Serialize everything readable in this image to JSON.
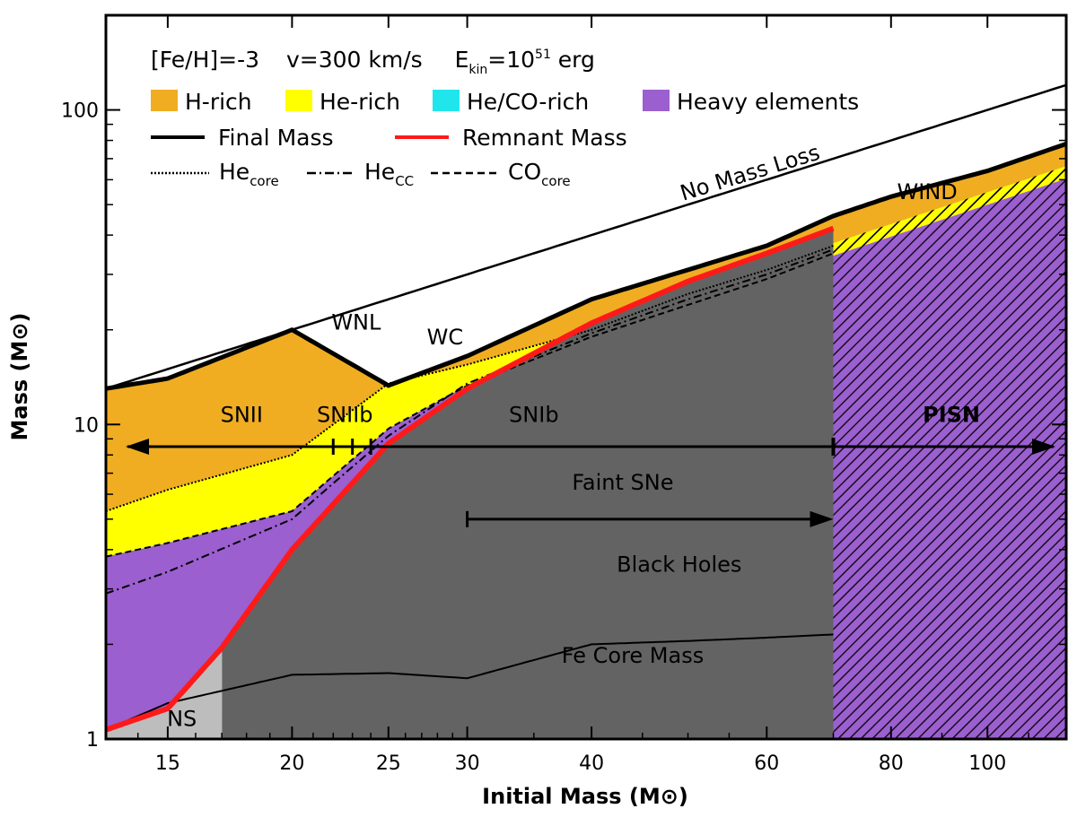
{
  "chart_data": {
    "type": "area",
    "subtype": "stellar fate diagram (stacked mass regions vs initial mass)",
    "xscale": "log",
    "yscale": "log",
    "xlim": [
      13,
      120
    ],
    "ylim": [
      1,
      200
    ],
    "xlabel": "Initial Mass (M⊙)",
    "ylabel": "Mass (M⊙)",
    "xticks": [
      15,
      20,
      25,
      30,
      40,
      60,
      80,
      100
    ],
    "yticks": [
      1,
      10,
      100
    ],
    "grid": false,
    "header": {
      "parts": [
        "[Fe/H]=-3",
        "v=300 km/s",
        "E",
        "kin",
        "=10",
        "51",
        " erg"
      ]
    },
    "legend_placement": "top-left",
    "legend": {
      "fills": [
        {
          "label": "H-rich",
          "color": "#f0ad22"
        },
        {
          "label": "He-rich",
          "color": "#ffff00"
        },
        {
          "label": "He/CO-rich",
          "color": "#20e6ec"
        },
        {
          "label": "Heavy elements",
          "color": "#9b5fcf"
        }
      ],
      "lines": [
        {
          "label": "Final Mass",
          "color": "#000000",
          "style": "solid-thick"
        },
        {
          "label": "Remnant Mass",
          "color": "#ff1a1a",
          "style": "solid-thick"
        }
      ],
      "dashes": [
        {
          "label": "He",
          "sub": "core",
          "style": "dotted"
        },
        {
          "label": "He",
          "sub": "CC",
          "style": "dashdot"
        },
        {
          "label": "CO",
          "sub": "core",
          "style": "dashed"
        }
      ]
    },
    "colors": {
      "h_rich": "#f0ad22",
      "he_rich": "#ffff00",
      "heco_rich": "#20e6ec",
      "heavy": "#9b5fcf",
      "black_hole": "#636363",
      "neutron_star": "#bdbdbd",
      "remnant_line": "#ff1a1a",
      "pisn_text": "#ffee22"
    },
    "series": {
      "no_mass_loss": {
        "name": "No Mass Loss",
        "x": [
          13,
          120
        ],
        "y": [
          13,
          120
        ]
      },
      "final_mass": {
        "name": "Final Mass",
        "x": [
          13,
          15,
          20,
          25,
          30,
          40,
          60,
          70,
          80,
          100,
          120
        ],
        "y": [
          13,
          14,
          20,
          13.3,
          16.5,
          25,
          37,
          46,
          53,
          64,
          78
        ]
      },
      "he_core": {
        "x": [
          13,
          15,
          20,
          25,
          30,
          40,
          50,
          60,
          70
        ],
        "y": [
          5.3,
          6.2,
          8,
          13.5,
          15.5,
          20,
          26,
          31,
          37
        ]
      },
      "he_cc": {
        "x": [
          13,
          15,
          20,
          22,
          25,
          30,
          40,
          50,
          60,
          70
        ],
        "y": [
          2.9,
          3.4,
          5,
          6.5,
          9.2,
          13.5,
          19.5,
          25,
          30,
          36
        ]
      },
      "co_core": {
        "x": [
          13,
          15,
          20,
          25,
          30,
          40,
          50,
          60,
          70
        ],
        "y": [
          3.8,
          4.2,
          5.3,
          9.7,
          13.3,
          19,
          24,
          29,
          35
        ]
      },
      "remnant_mass": {
        "name": "Remnant Mass",
        "x": [
          13,
          15,
          17,
          20,
          25,
          30,
          40,
          50,
          60,
          70
        ],
        "y": [
          1.07,
          1.25,
          1.95,
          4,
          8.7,
          13,
          21,
          28.5,
          35,
          42
        ]
      },
      "fe_core_mass": {
        "name": "Fe Core Mass",
        "x": [
          13,
          15,
          20,
          25,
          30,
          40,
          50,
          60,
          70
        ],
        "y": [
          1.07,
          1.3,
          1.6,
          1.62,
          1.56,
          2.0,
          2.05,
          2.1,
          2.15
        ]
      },
      "pisn_bottom_frac": {
        "x": [
          70,
          120
        ],
        "y": [
          37,
          65
        ]
      }
    },
    "regions": {
      "ns_region": {
        "x": [
          13,
          17
        ],
        "label": "NS"
      },
      "black_hole_region": {
        "x": [
          17,
          70
        ],
        "label": "Black Holes"
      },
      "pisn_region": {
        "x": [
          70,
          120
        ],
        "label": "PISN"
      }
    },
    "annotations": [
      {
        "text": "No Mass Loss",
        "x": 58,
        "y": 60,
        "angle": -17
      },
      {
        "text": "WIND",
        "x": 87,
        "y": 52
      },
      {
        "text": "WNL",
        "x": 23.2,
        "y": 20
      },
      {
        "text": "WC",
        "x": 28.5,
        "y": 18
      },
      {
        "text": "SNII",
        "x": 17.8,
        "y": 10.2
      },
      {
        "text": "SNIIb",
        "x": 22.6,
        "y": 10.2
      },
      {
        "text": "SNIb",
        "x": 35,
        "y": 10.2
      },
      {
        "text": "PISN",
        "x": 92,
        "y": 10.2
      },
      {
        "text": "Faint SNe",
        "x": 43,
        "y": 6.2
      },
      {
        "text": "Black Holes",
        "x": 49,
        "y": 3.4
      },
      {
        "text": "Fe Core Mass",
        "x": 44,
        "y": 1.75
      },
      {
        "text": "NS",
        "x": 15.5,
        "y": 1.1
      }
    ],
    "arrows": {
      "main_row_y": 8.5,
      "sn_range": {
        "x": [
          13,
          70
        ]
      },
      "pisn_range": {
        "x": [
          70,
          120
        ]
      },
      "sn_iib_marks_x": [
        22,
        23,
        24
      ],
      "faint_sne": {
        "x": [
          30,
          70
        ],
        "y": 5.0
      }
    }
  }
}
